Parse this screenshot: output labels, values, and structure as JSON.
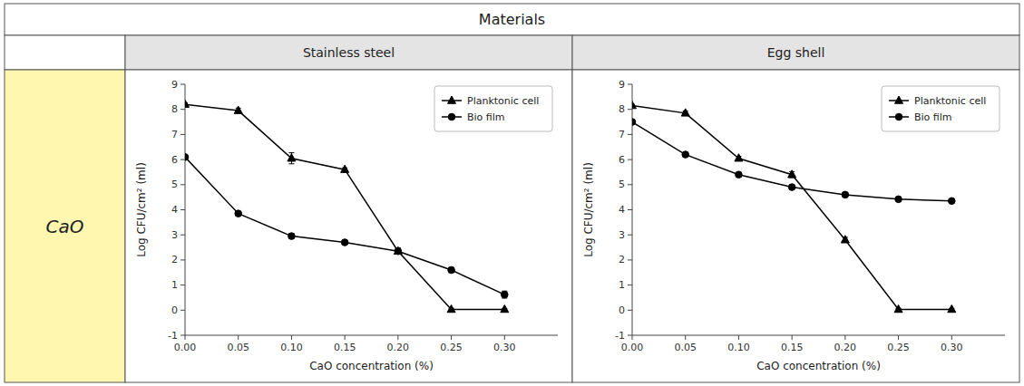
{
  "title": "Materials",
  "annotations": [
    "CaO"
  ],
  "chart_data": [
    {
      "type": "line",
      "title": "Stainless steel",
      "x_label": "CaO concentration (%)",
      "y_label": "Log CFU/cm² (ml)",
      "x": [
        0.0,
        0.05,
        0.1,
        0.15,
        0.2,
        0.25,
        0.3
      ],
      "xlim": [
        0,
        0.35
      ],
      "xticks": [
        {
          "value": 0.0,
          "label": "0.00"
        },
        {
          "value": 0.05,
          "label": "0.05"
        },
        {
          "value": 0.1,
          "label": "0.10"
        },
        {
          "value": 0.15,
          "label": "0.15"
        },
        {
          "value": 0.2,
          "label": "0.20"
        },
        {
          "value": 0.25,
          "label": "0.25"
        },
        {
          "value": 0.3,
          "label": "0.30"
        }
      ],
      "ylim": [
        -1,
        9
      ],
      "yticks": [
        -1,
        0,
        1,
        2,
        3,
        4,
        5,
        6,
        7,
        8,
        9
      ],
      "legend": "upper right",
      "grid": false,
      "series": [
        {
          "name": "Planktonic cell",
          "color": "#000000",
          "marker": "triangle",
          "values": [
            8.2,
            7.95,
            6.05,
            5.6,
            2.35,
            0.03,
            0.03
          ],
          "errors": [
            0.05,
            0.1,
            0.22,
            0.07,
            0.12,
            0.04,
            0.04
          ]
        },
        {
          "name": "Bio film",
          "color": "#000000",
          "marker": "circle",
          "values": [
            6.1,
            3.85,
            2.95,
            2.7,
            2.35,
            1.6,
            0.62
          ],
          "errors": [
            0.06,
            0.07,
            0.1,
            0.07,
            0.12,
            0.1,
            0.14
          ]
        }
      ]
    },
    {
      "type": "line",
      "title": "Egg shell",
      "x_label": "CaO concentration (%)",
      "y_label": "Log CFU/cm² (ml)",
      "x": [
        0.0,
        0.05,
        0.1,
        0.15,
        0.2,
        0.25,
        0.3
      ],
      "xlim": [
        0,
        0.35
      ],
      "xticks": [
        {
          "value": 0.0,
          "label": "0.00"
        },
        {
          "value": 0.05,
          "label": "0.05"
        },
        {
          "value": 0.1,
          "label": "0.10"
        },
        {
          "value": 0.15,
          "label": "0.15"
        },
        {
          "value": 0.2,
          "label": "0.20"
        },
        {
          "value": 0.25,
          "label": "0.25"
        },
        {
          "value": 0.3,
          "label": "0.30"
        }
      ],
      "ylim": [
        -1,
        9
      ],
      "yticks": [
        -1,
        0,
        1,
        2,
        3,
        4,
        5,
        6,
        7,
        8,
        9
      ],
      "legend": "upper right",
      "grid": false,
      "series": [
        {
          "name": "Planktonic cell",
          "color": "#000000",
          "marker": "triangle",
          "values": [
            8.15,
            7.85,
            6.05,
            5.4,
            2.8,
            0.03,
            0.03
          ],
          "errors": [
            0.05,
            0.08,
            0.08,
            0.12,
            0.1,
            0.04,
            0.04
          ]
        },
        {
          "name": "Bio film",
          "color": "#000000",
          "marker": "circle",
          "values": [
            7.5,
            6.2,
            5.4,
            4.9,
            4.6,
            4.42,
            4.35
          ],
          "errors": [
            0.07,
            0.07,
            0.09,
            0.1,
            0.07,
            0.07,
            0.07
          ]
        }
      ]
    }
  ]
}
